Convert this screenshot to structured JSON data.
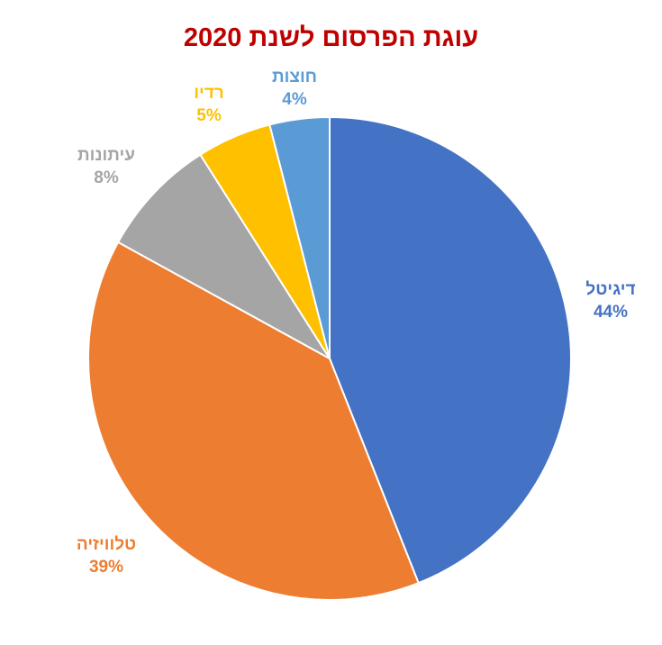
{
  "chart_data": {
    "type": "pie",
    "title": "עוגת הפרסום לשנת 2020",
    "slices": [
      {
        "name": "דיגיטל",
        "label": "44%",
        "value": 44,
        "color": "#4472c4"
      },
      {
        "name": "טלוויזיה",
        "label": "39%",
        "value": 39,
        "color": "#ed7d31"
      },
      {
        "name": "עיתונות",
        "label": "8%",
        "value": 8,
        "color": "#a5a5a5"
      },
      {
        "name": "רדיו",
        "label": "5%",
        "value": 5,
        "color": "#ffc000"
      },
      {
        "name": "חוצות",
        "label": "4%",
        "value": 4,
        "color": "#5b9bd5"
      }
    ],
    "start": "top",
    "direction": "clockwise"
  },
  "colors": {
    "title": "#c00000",
    "background": "#ffffff"
  }
}
